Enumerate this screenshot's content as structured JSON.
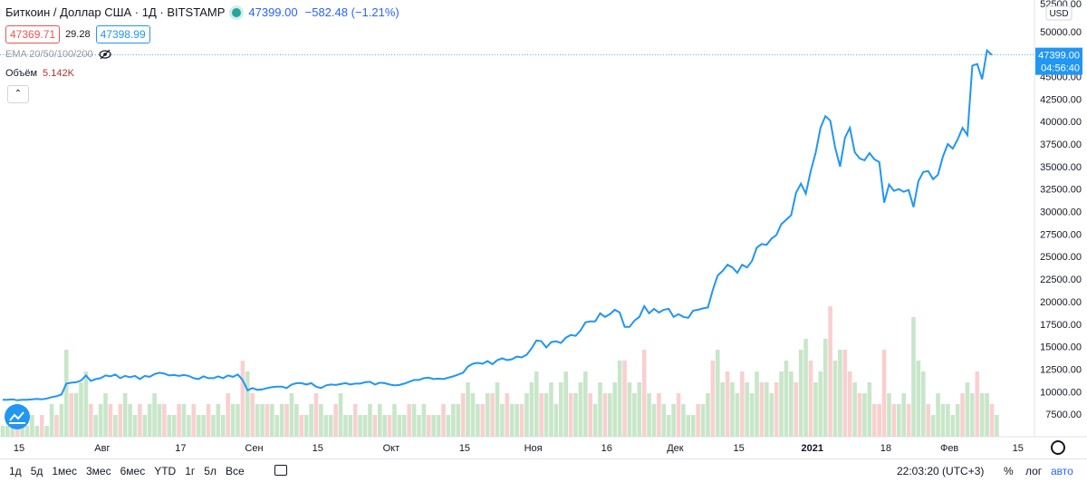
{
  "header": {
    "title": "Биткоин / Доллар США · 1Д · BITSTAMP",
    "last": "47399.00",
    "change": "−582.48 (−1.21%)",
    "bid": "47369.71",
    "spread": "29.28",
    "ask": "47398.99",
    "ema_label": "EMA 20/50/100/200",
    "volume_label": "Объём",
    "volume_value": "5.142K",
    "collapse": "⌃"
  },
  "price_axis": {
    "currency": "USD",
    "last_label": "47399.00",
    "countdown": "04:56:40",
    "top_partial": "52500.00"
  },
  "bottom_bar": {
    "ranges": [
      "1д",
      "5д",
      "1мес",
      "3мес",
      "6мес",
      "YTD",
      "1г",
      "5л",
      "Все"
    ],
    "time": "22:03:20 (UTC+3)",
    "percent": "%",
    "log": "лог",
    "auto": "авто"
  },
  "colors": {
    "line": "#2196f3",
    "vol_up": "#c8e6c9",
    "vol_down": "#f8d0d0",
    "last_badge": "#2196f3"
  },
  "chart_data": {
    "type": "line",
    "ylim": [
      5000,
      53500
    ],
    "y_ticks": [
      "7500.00",
      "10000.00",
      "12500.00",
      "15000.00",
      "17500.00",
      "20000.00",
      "22500.00",
      "25000.00",
      "27500.00",
      "30000.00",
      "32500.00",
      "35000.00",
      "37500.00",
      "40000.00",
      "42500.00",
      "45000.00",
      "47500.00",
      "50000.00"
    ],
    "x_ticks": [
      "15",
      "Авг",
      "17",
      "Сен",
      "15",
      "Окт",
      "15",
      "Ноя",
      "16",
      "Дек",
      "15",
      "2021",
      "18",
      "Фев",
      "15"
    ],
    "x_tick_index": [
      0,
      17,
      33,
      48,
      61,
      76,
      91,
      105,
      120,
      134,
      147,
      162,
      177,
      190,
      204
    ],
    "bold_tick": "2021",
    "close": [
      9100,
      9100,
      9150,
      9050,
      9100,
      9100,
      9150,
      9200,
      9150,
      9250,
      9400,
      9500,
      9700,
      10900,
      11000,
      11050,
      11250,
      11800,
      11200,
      11400,
      11500,
      11800,
      11700,
      11900,
      11500,
      11750,
      11600,
      11750,
      11400,
      11750,
      11650,
      11950,
      12100,
      12000,
      11800,
      11850,
      11750,
      11850,
      11750,
      11500,
      11400,
      11700,
      11500,
      11500,
      11700,
      11500,
      11800,
      11650,
      11900,
      11300,
      10150,
      10400,
      10200,
      10250,
      10400,
      10500,
      10550,
      10550,
      10400,
      10800,
      10950,
      10950,
      10800,
      10950,
      10550,
      10400,
      10700,
      10800,
      10750,
      10850,
      10950,
      10800,
      10900,
      10900,
      11050,
      11100,
      10800,
      11000,
      10950,
      10800,
      10700,
      10750,
      10900,
      11100,
      11300,
      11300,
      11500,
      11550,
      11400,
      11450,
      11400,
      11550,
      11700,
      11900,
      12100,
      12800,
      13100,
      13200,
      13100,
      13400,
      13050,
      13500,
      13700,
      13500,
      13600,
      13900,
      13800,
      14100,
      14800,
      15700,
      15600,
      14900,
      15500,
      15600,
      15400,
      16000,
      16300,
      16200,
      16800,
      17700,
      17800,
      17800,
      18700,
      18300,
      18600,
      19100,
      18800,
      17200,
      17200,
      17900,
      18300,
      19500,
      18700,
      19200,
      18800,
      19100,
      19200,
      18300,
      18600,
      18300,
      18200,
      19000,
      19100,
      19250,
      19350,
      21300,
      22900,
      23400,
      24100,
      23800,
      23200,
      24100,
      23800,
      24500,
      26000,
      26400,
      26300,
      27000,
      27400,
      28600,
      29100,
      29600,
      32100,
      33100,
      32000,
      34500,
      36500,
      39300,
      40600,
      40100,
      37100,
      35000,
      38200,
      39300,
      36600,
      35900,
      35700,
      36500,
      35800,
      35500,
      31000,
      33000,
      32300,
      32500,
      32200,
      32400,
      30500,
      33400,
      34400,
      34500,
      33600,
      34100,
      36100,
      37500,
      37000,
      38000,
      39300,
      38500,
      46200,
      46400,
      44700,
      47900,
      47399
    ],
    "volume_max": 17000,
    "volume": [
      [
        0,
        1
      ],
      [
        0,
        1
      ],
      [
        0,
        2
      ],
      [
        1,
        1
      ],
      [
        0,
        2
      ],
      [
        0,
        1
      ],
      [
        0,
        2
      ],
      [
        0,
        1
      ],
      [
        1,
        2
      ],
      [
        0,
        1
      ],
      [
        0,
        3
      ],
      [
        1,
        2
      ],
      [
        0,
        3
      ],
      [
        0,
        8
      ],
      [
        1,
        4
      ],
      [
        0,
        4
      ],
      [
        0,
        5
      ],
      [
        0,
        6
      ],
      [
        1,
        3
      ],
      [
        0,
        2
      ],
      [
        0,
        3
      ],
      [
        0,
        4
      ],
      [
        1,
        3
      ],
      [
        0,
        2
      ],
      [
        1,
        3
      ],
      [
        0,
        4
      ],
      [
        0,
        3
      ],
      [
        0,
        2
      ],
      [
        1,
        3
      ],
      [
        0,
        2
      ],
      [
        0,
        3
      ],
      [
        0,
        4
      ],
      [
        0,
        3
      ],
      [
        1,
        3
      ],
      [
        0,
        2
      ],
      [
        0,
        2
      ],
      [
        1,
        3
      ],
      [
        0,
        3
      ],
      [
        0,
        2
      ],
      [
        1,
        3
      ],
      [
        0,
        2
      ],
      [
        0,
        2
      ],
      [
        1,
        3
      ],
      [
        0,
        2
      ],
      [
        0,
        3
      ],
      [
        0,
        2
      ],
      [
        1,
        4
      ],
      [
        0,
        3
      ],
      [
        0,
        3
      ],
      [
        1,
        7
      ],
      [
        0,
        6
      ],
      [
        1,
        4
      ],
      [
        0,
        3
      ],
      [
        0,
        3
      ],
      [
        1,
        3
      ],
      [
        0,
        3
      ],
      [
        0,
        2
      ],
      [
        0,
        3
      ],
      [
        1,
        3
      ],
      [
        0,
        4
      ],
      [
        0,
        3
      ],
      [
        1,
        2
      ],
      [
        0,
        2
      ],
      [
        0,
        3
      ],
      [
        1,
        4
      ],
      [
        0,
        3
      ],
      [
        0,
        2
      ],
      [
        0,
        2
      ],
      [
        1,
        3
      ],
      [
        0,
        4
      ],
      [
        0,
        2
      ],
      [
        0,
        2
      ],
      [
        1,
        3
      ],
      [
        0,
        2
      ],
      [
        0,
        2
      ],
      [
        0,
        3
      ],
      [
        1,
        2
      ],
      [
        0,
        3
      ],
      [
        0,
        2
      ],
      [
        1,
        2
      ],
      [
        0,
        3
      ],
      [
        0,
        2
      ],
      [
        0,
        2
      ],
      [
        1,
        3
      ],
      [
        0,
        3
      ],
      [
        0,
        2
      ],
      [
        0,
        3
      ],
      [
        1,
        2
      ],
      [
        0,
        2
      ],
      [
        0,
        2
      ],
      [
        1,
        3
      ],
      [
        0,
        2
      ],
      [
        0,
        3
      ],
      [
        0,
        3
      ],
      [
        1,
        4
      ],
      [
        0,
        5
      ],
      [
        0,
        4
      ],
      [
        0,
        3
      ],
      [
        1,
        3
      ],
      [
        0,
        4
      ],
      [
        1,
        4
      ],
      [
        0,
        5
      ],
      [
        0,
        3
      ],
      [
        1,
        4
      ],
      [
        0,
        3
      ],
      [
        0,
        3
      ],
      [
        1,
        3
      ],
      [
        0,
        4
      ],
      [
        0,
        5
      ],
      [
        0,
        6
      ],
      [
        1,
        4
      ],
      [
        0,
        4
      ],
      [
        0,
        5
      ],
      [
        0,
        3
      ],
      [
        0,
        5
      ],
      [
        0,
        6
      ],
      [
        1,
        4
      ],
      [
        0,
        4
      ],
      [
        0,
        5
      ],
      [
        0,
        6
      ],
      [
        1,
        4
      ],
      [
        0,
        3
      ],
      [
        0,
        5
      ],
      [
        1,
        4
      ],
      [
        0,
        4
      ],
      [
        0,
        5
      ],
      [
        0,
        7
      ],
      [
        1,
        7
      ],
      [
        0,
        5
      ],
      [
        0,
        4
      ],
      [
        0,
        5
      ],
      [
        1,
        8
      ],
      [
        0,
        4
      ],
      [
        0,
        3
      ],
      [
        1,
        4
      ],
      [
        0,
        3
      ],
      [
        0,
        2
      ],
      [
        0,
        3
      ],
      [
        1,
        4
      ],
      [
        0,
        3
      ],
      [
        0,
        2
      ],
      [
        0,
        2
      ],
      [
        1,
        3
      ],
      [
        0,
        3
      ],
      [
        0,
        4
      ],
      [
        1,
        7
      ],
      [
        0,
        8
      ],
      [
        0,
        5
      ],
      [
        1,
        6
      ],
      [
        0,
        5
      ],
      [
        0,
        4
      ],
      [
        1,
        6
      ],
      [
        0,
        5
      ],
      [
        0,
        4
      ],
      [
        0,
        6
      ],
      [
        1,
        5
      ],
      [
        0,
        5
      ],
      [
        0,
        4
      ],
      [
        1,
        5
      ],
      [
        0,
        6
      ],
      [
        0,
        7
      ],
      [
        0,
        6
      ],
      [
        1,
        5
      ],
      [
        0,
        8
      ],
      [
        0,
        9
      ],
      [
        1,
        7
      ],
      [
        0,
        5
      ],
      [
        0,
        6
      ],
      [
        0,
        9
      ],
      [
        1,
        12
      ],
      [
        0,
        7
      ],
      [
        0,
        8
      ],
      [
        1,
        8
      ],
      [
        1,
        6
      ],
      [
        0,
        5
      ],
      [
        1,
        4
      ],
      [
        0,
        4
      ],
      [
        0,
        5
      ],
      [
        1,
        3
      ],
      [
        1,
        3
      ],
      [
        1,
        8
      ],
      [
        0,
        4
      ],
      [
        1,
        3
      ],
      [
        0,
        3
      ],
      [
        0,
        4
      ],
      [
        1,
        3
      ],
      [
        0,
        11
      ],
      [
        0,
        7
      ],
      [
        0,
        6
      ],
      [
        1,
        3
      ],
      [
        0,
        2
      ],
      [
        0,
        4
      ],
      [
        0,
        3
      ],
      [
        0,
        3
      ],
      [
        0,
        2
      ],
      [
        0,
        3
      ],
      [
        1,
        4
      ],
      [
        0,
        5
      ],
      [
        0,
        4
      ],
      [
        1,
        6
      ],
      [
        0,
        4
      ],
      [
        0,
        4
      ],
      [
        1,
        3
      ],
      [
        0,
        2
      ]
    ]
  }
}
